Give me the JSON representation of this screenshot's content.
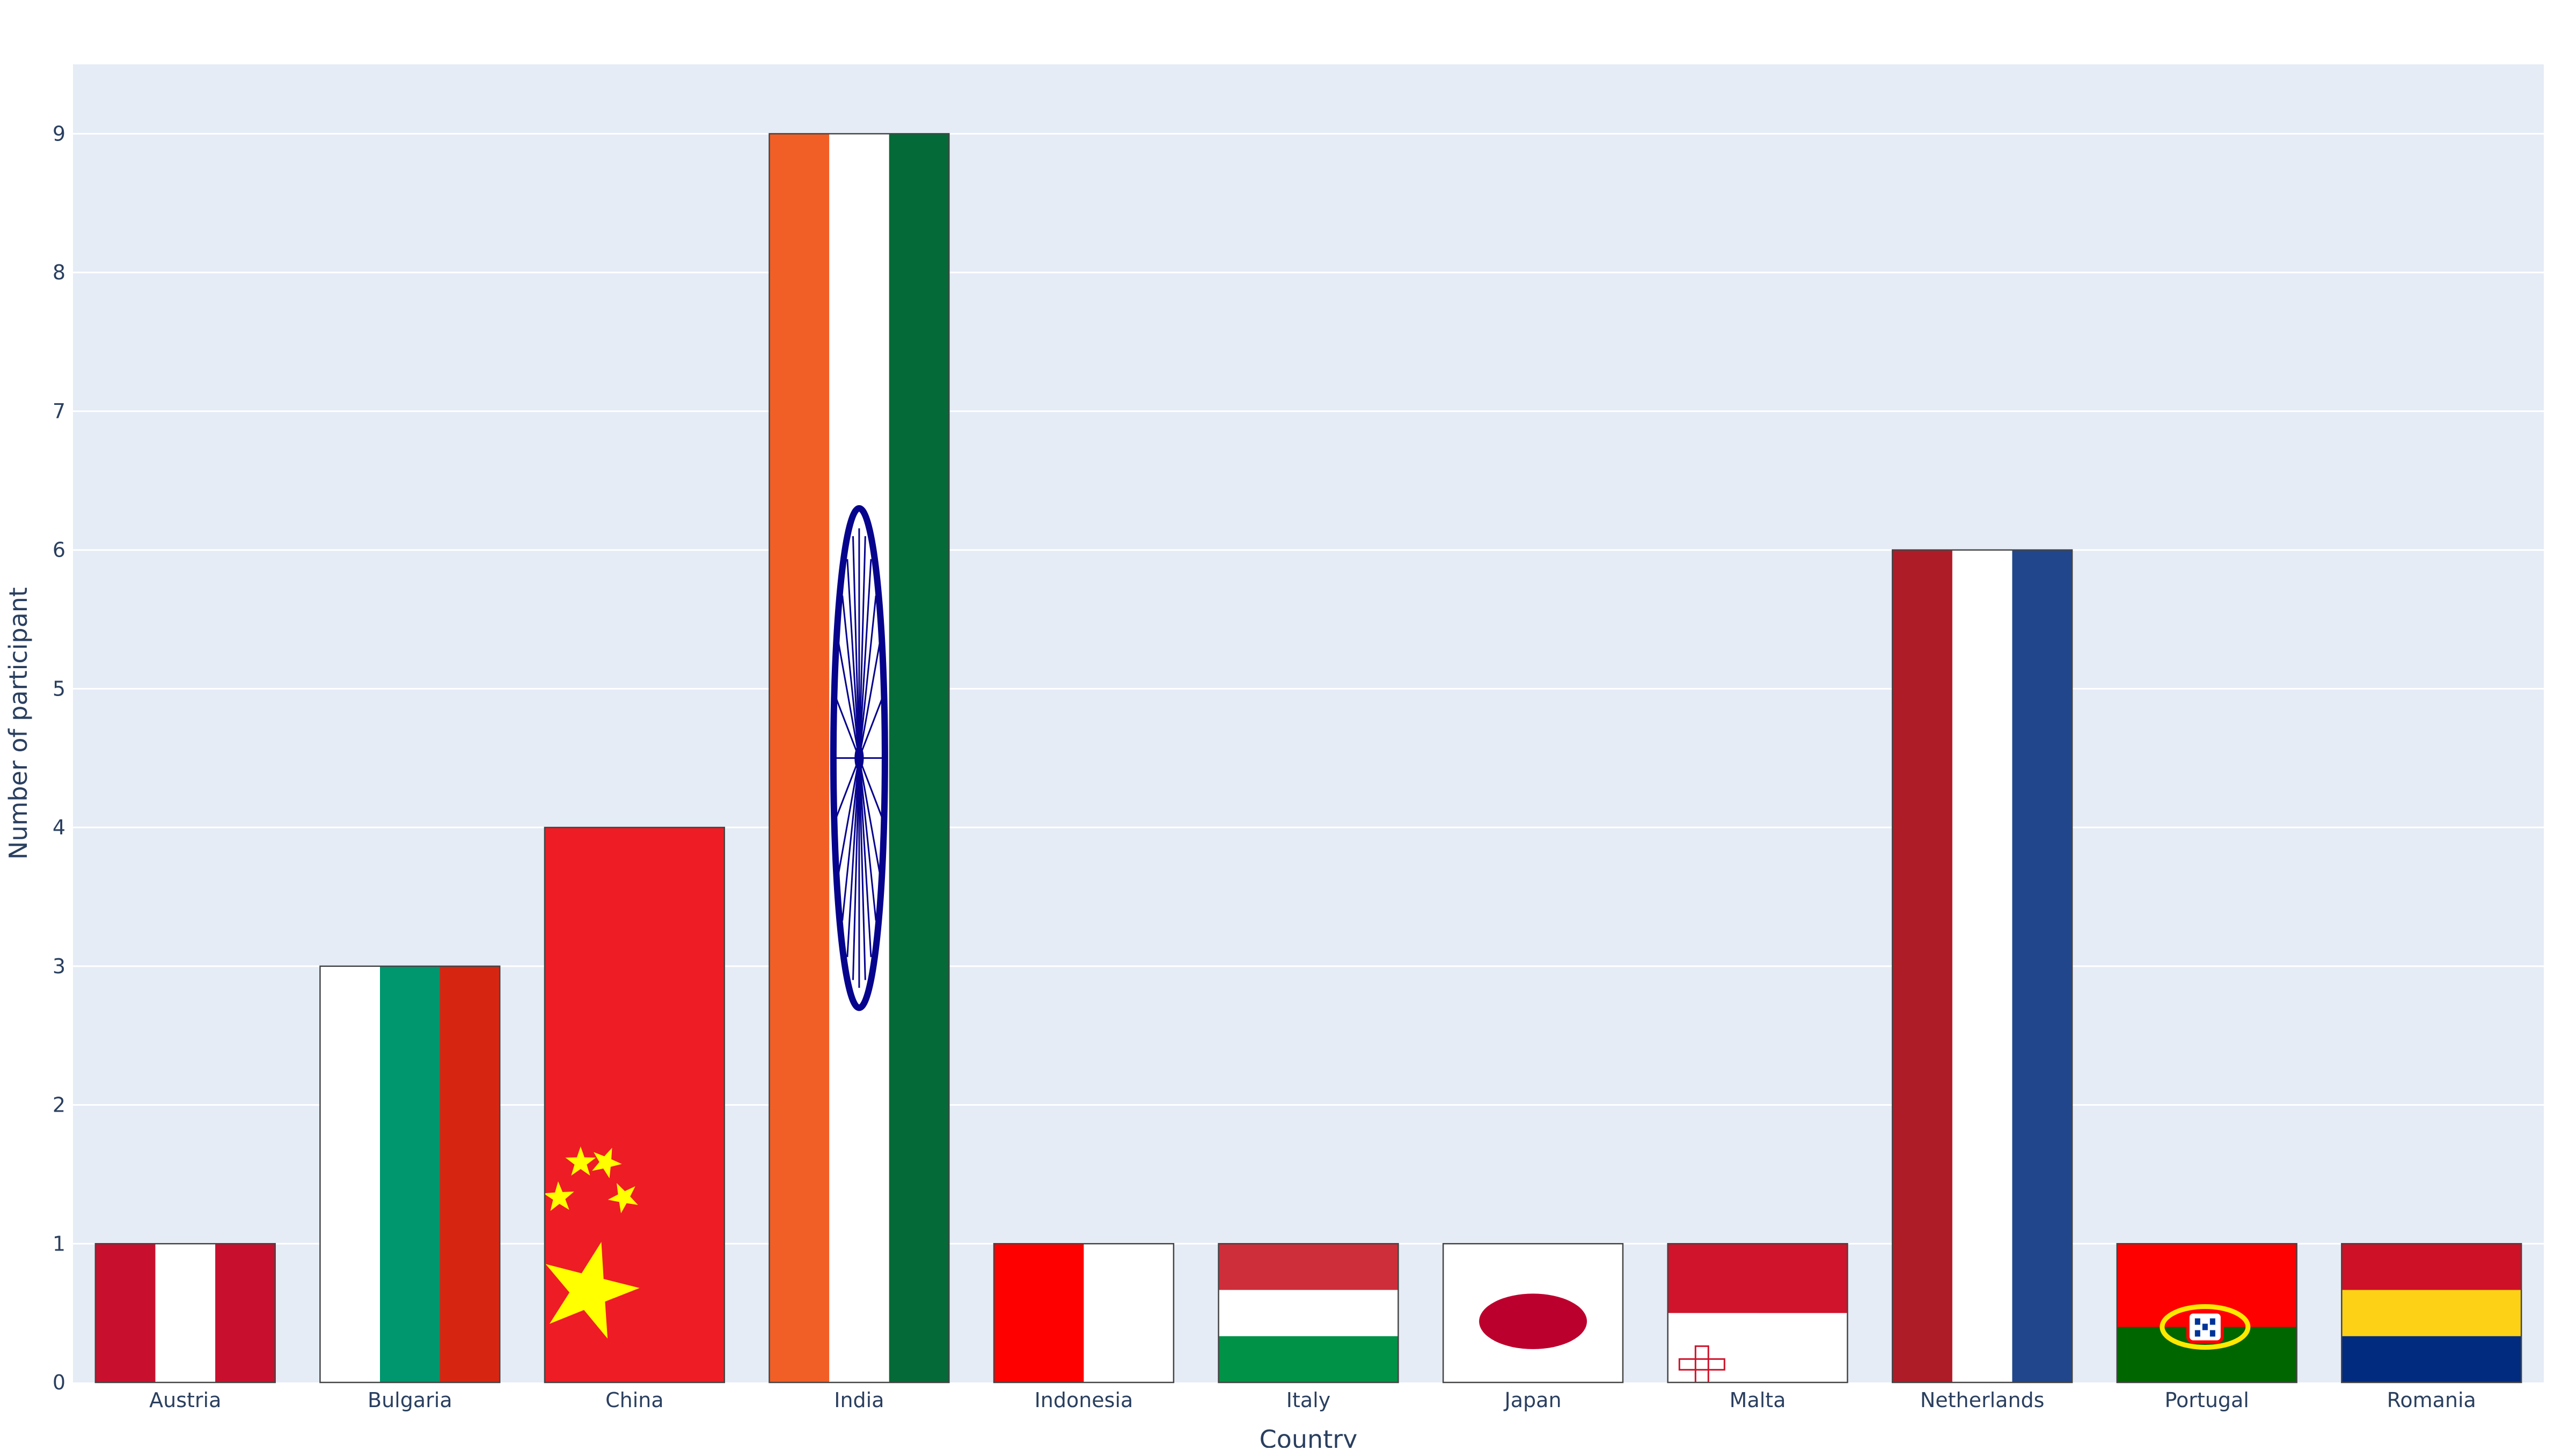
{
  "chart_data": {
    "type": "bar",
    "xlabel": "Country",
    "ylabel": "Number of participant",
    "ylim": [
      0,
      9.5
    ],
    "yticks": [
      0,
      1,
      2,
      3,
      4,
      5,
      6,
      7,
      8,
      9
    ],
    "grid": true,
    "categories": [
      "Austria",
      "Bulgaria",
      "China",
      "India",
      "Indonesia",
      "Italy",
      "Japan",
      "Malta",
      "Netherlands",
      "Portugal",
      "Romania"
    ],
    "values": [
      1,
      3,
      4,
      9,
      1,
      1,
      1,
      1,
      6,
      1,
      1
    ],
    "bar_fills": [
      {
        "pattern": "vertical-tricolor",
        "colors": [
          "#c8102e",
          "#ffffff",
          "#c8102e"
        ]
      },
      {
        "pattern": "vertical-tricolor",
        "colors": [
          "#ffffff",
          "#00966e",
          "#d62612"
        ]
      },
      {
        "pattern": "china",
        "colors": [
          "#ee1c25",
          "#ffff00"
        ]
      },
      {
        "pattern": "india",
        "colors": [
          "#f15f26",
          "#ffffff",
          "#046a38",
          "#06038d"
        ]
      },
      {
        "pattern": "vertical-split",
        "colors": [
          "#ff0000",
          "#ffffff"
        ]
      },
      {
        "pattern": "horizontal-tricolor",
        "colors": [
          "#cd2e3a",
          "#ffffff",
          "#009246"
        ]
      },
      {
        "pattern": "japan",
        "colors": [
          "#ffffff",
          "#bc002d"
        ]
      },
      {
        "pattern": "malta",
        "colors": [
          "#cf142b",
          "#ffffff"
        ]
      },
      {
        "pattern": "vertical-tricolor",
        "colors": [
          "#ae1c28",
          "#ffffff",
          "#21468b"
        ]
      },
      {
        "pattern": "portugal",
        "colors": [
          "#ff0000",
          "#006600",
          "#ffe900"
        ]
      },
      {
        "pattern": "horizontal-tricolor",
        "colors": [
          "#ce1126",
          "#fcd116",
          "#002b7f"
        ]
      }
    ],
    "colors": {
      "plot_background": "#e5ecf6",
      "grid": "#ffffff",
      "text": "#2a3f5f",
      "bar_outline": "#444444"
    }
  }
}
